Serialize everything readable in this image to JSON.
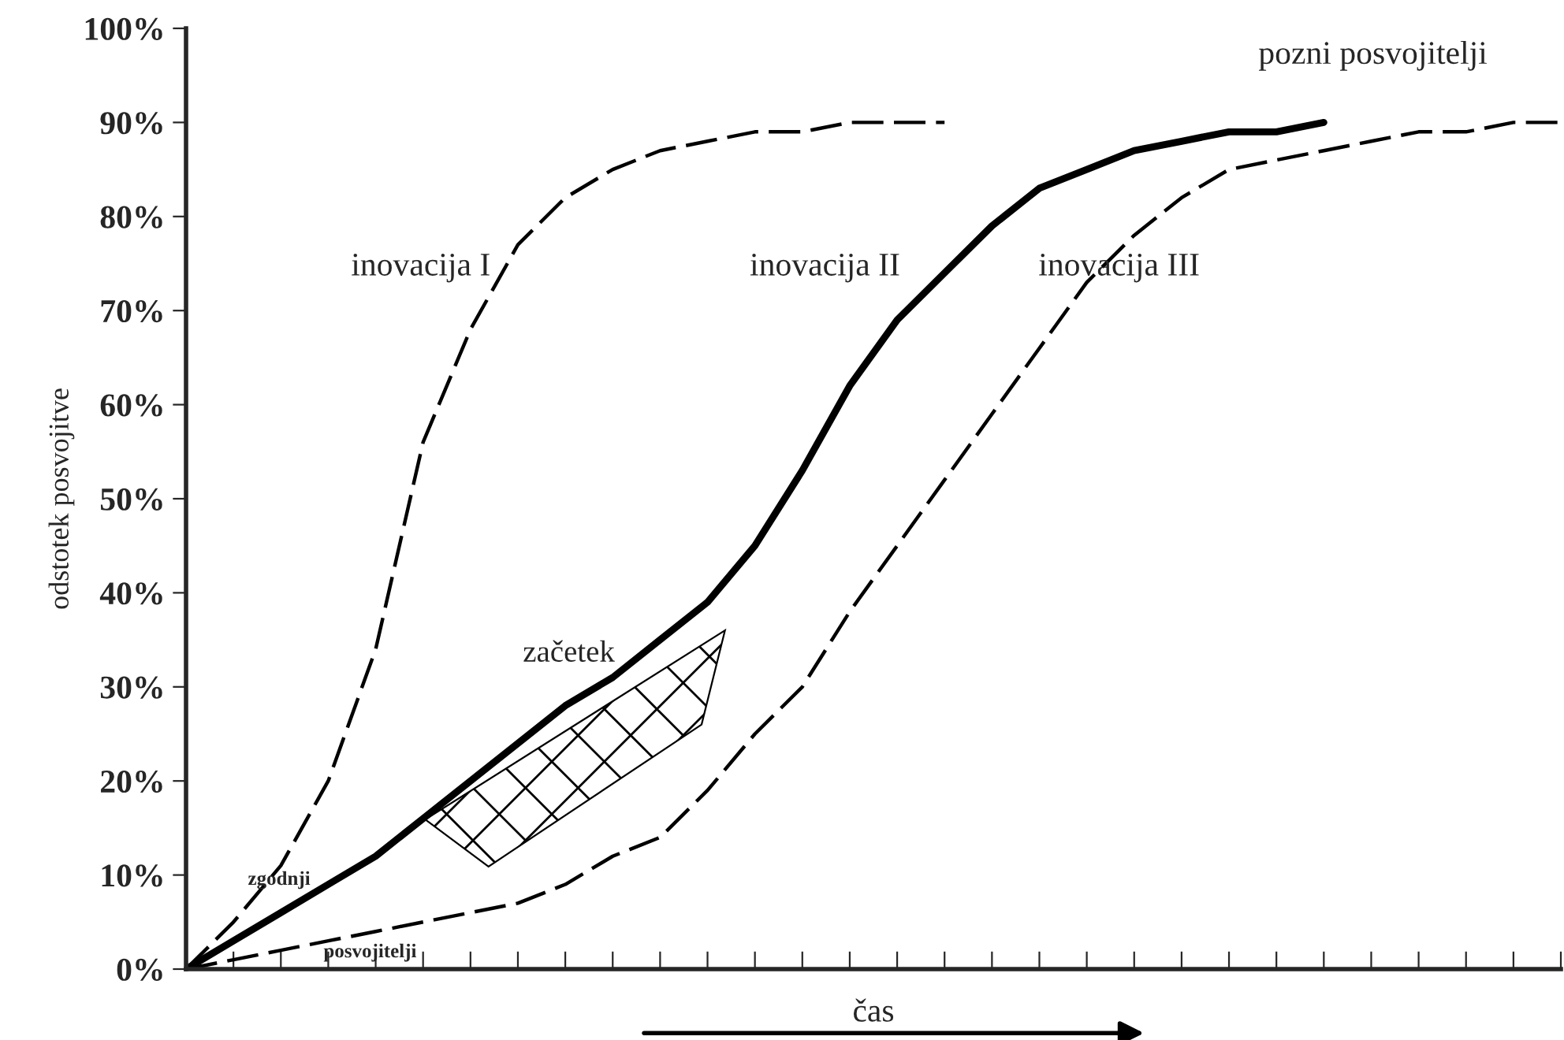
{
  "chart_data": {
    "type": "line",
    "ylabel": "odstotek posvojitve",
    "xlabel": "čas",
    "categories": [
      null,
      null,
      null,
      null,
      null,
      null,
      null,
      null,
      null,
      null,
      null,
      null,
      null,
      null,
      null,
      null,
      null,
      null,
      null,
      null,
      null,
      null,
      null,
      null,
      null,
      null,
      null,
      null,
      null,
      null
    ],
    "series": [
      {
        "color": "#000000",
        "line_style": "dashed",
        "values": [
          0,
          5,
          11,
          20,
          34,
          56,
          68,
          77,
          82,
          85,
          87,
          88,
          89,
          89,
          90,
          90,
          90,
          null,
          null,
          null,
          null,
          null,
          null,
          null,
          null,
          null,
          null,
          null,
          null,
          null
        ]
      },
      {
        "color": "#000000",
        "line_style": "solid",
        "values": [
          0,
          3,
          6,
          9,
          12,
          16,
          20,
          24,
          28,
          31,
          35,
          39,
          45,
          53,
          62,
          69,
          74,
          79,
          83,
          85,
          87,
          88,
          89,
          89,
          90,
          null,
          null,
          null,
          null,
          null
        ]
      },
      {
        "color": "#000000",
        "line_style": "dashed",
        "values": [
          0,
          1,
          2,
          3,
          4,
          5,
          6,
          7,
          9,
          12,
          14,
          19,
          25,
          30,
          38,
          45,
          52,
          59,
          66,
          73,
          78,
          82,
          85,
          86,
          87,
          88,
          89,
          89,
          90,
          90
        ]
      }
    ],
    "ylim": [
      0,
      100
    ],
    "yticks": [
      {
        "value": 0,
        "label": "0%"
      },
      {
        "value": 10,
        "label": "10%"
      },
      {
        "value": 20,
        "label": "20%"
      },
      {
        "value": 30,
        "label": "30%"
      },
      {
        "value": 40,
        "label": "40%"
      },
      {
        "value": 50,
        "label": "50%"
      },
      {
        "value": 60,
        "label": "60%"
      },
      {
        "value": 70,
        "label": "70%"
      },
      {
        "value": 80,
        "label": "80%"
      },
      {
        "value": 90,
        "label": "90%"
      },
      {
        "value": 100,
        "label": "100%"
      }
    ],
    "tick_labels": "y",
    "grid": false,
    "legend": false,
    "marker": "none",
    "annotations": [
      "inovacija I",
      "inovacija II",
      "inovacija III",
      "pozni posvojitelji",
      "začetek",
      "zgodnji",
      "posvojitelji"
    ]
  }
}
